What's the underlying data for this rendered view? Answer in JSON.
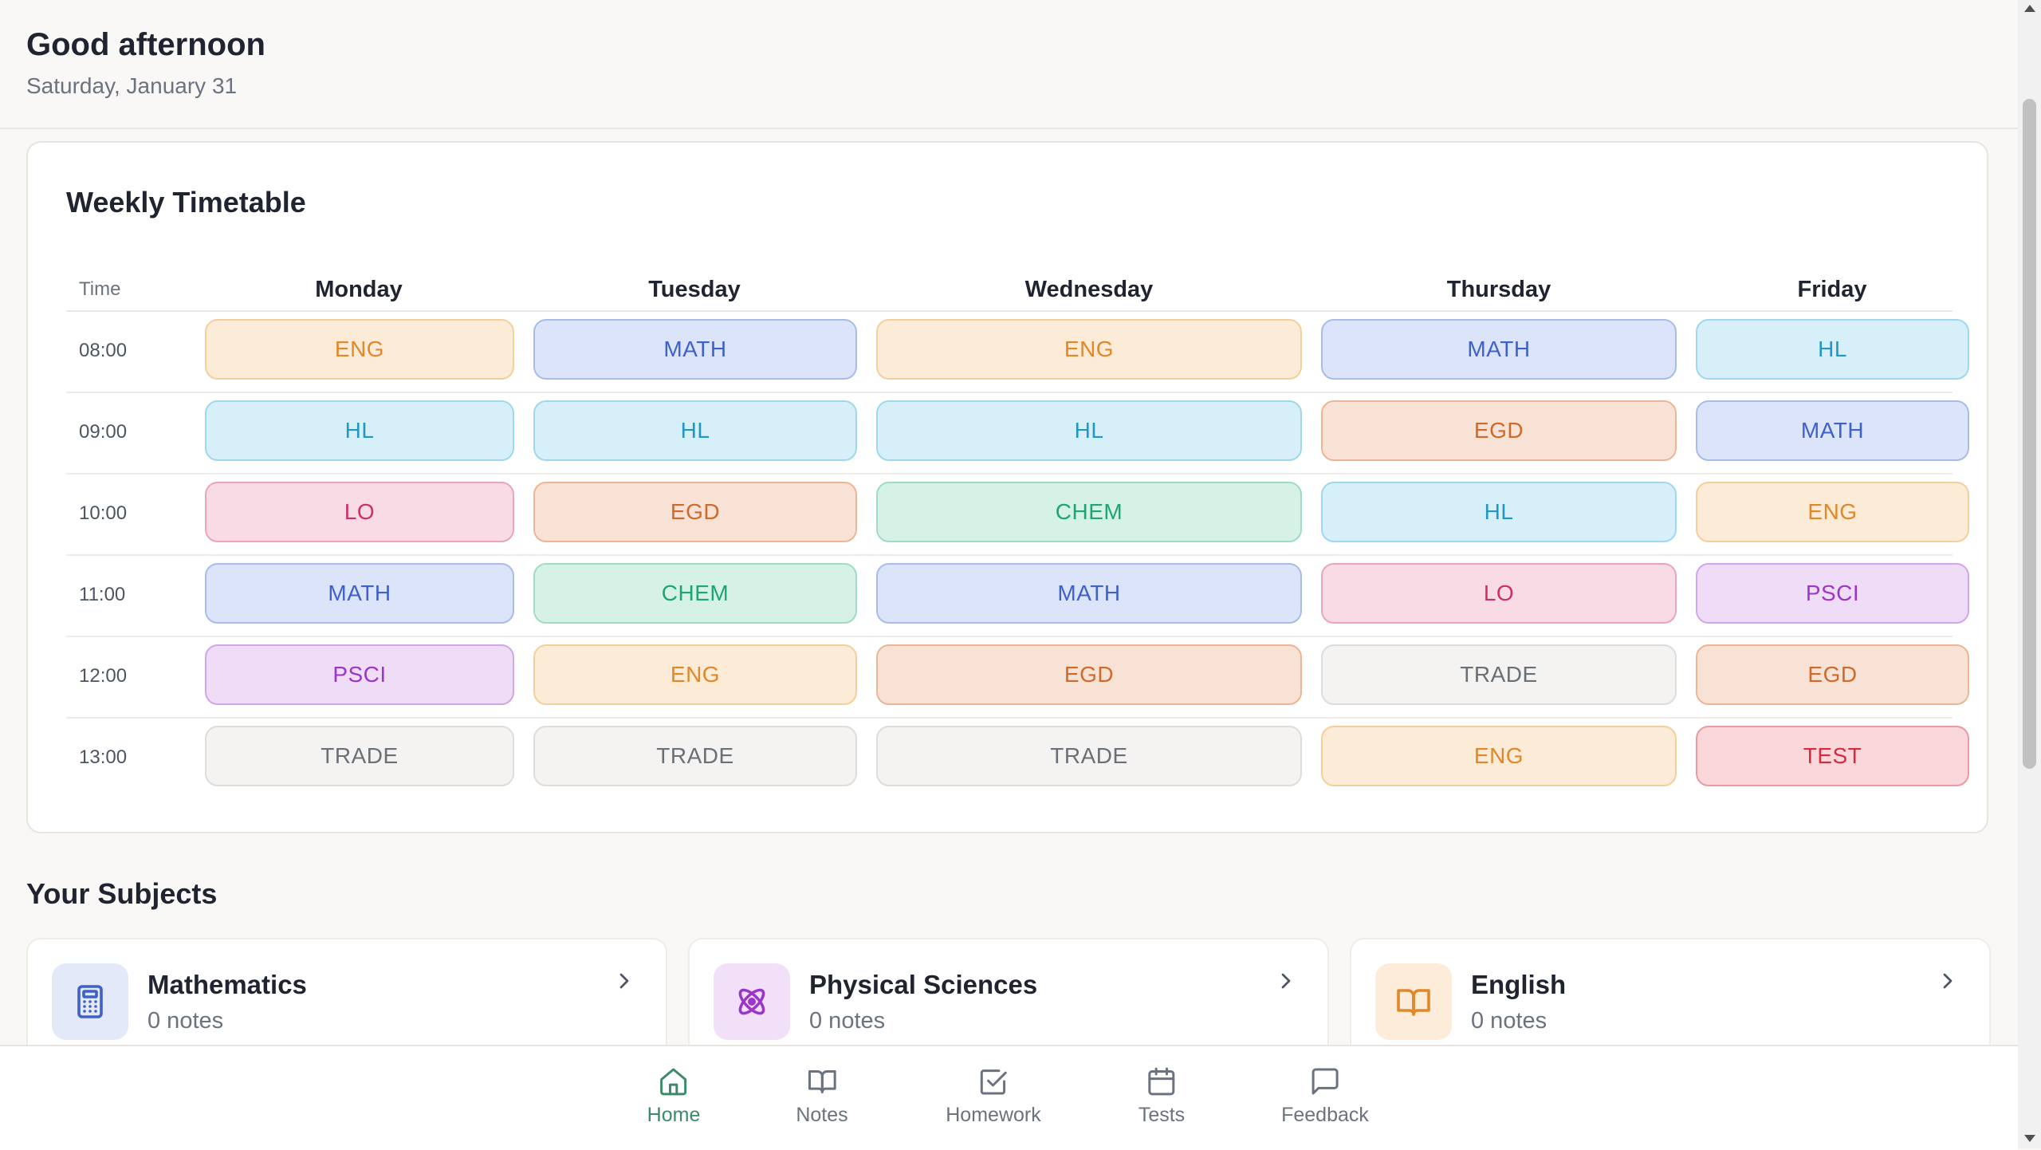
{
  "header": {
    "greeting": "Good afternoon",
    "date": "Saturday, January 31"
  },
  "timetable": {
    "title": "Weekly Timetable",
    "time_header": "Time",
    "days": [
      "Monday",
      "Tuesday",
      "Wednesday",
      "Thursday",
      "Friday"
    ],
    "rows": [
      {
        "time": "08:00",
        "slots": [
          "ENG",
          "MATH",
          "ENG",
          "MATH",
          "HL"
        ]
      },
      {
        "time": "09:00",
        "slots": [
          "HL",
          "HL",
          "HL",
          "EGD",
          "MATH"
        ]
      },
      {
        "time": "10:00",
        "slots": [
          "LO",
          "EGD",
          "CHEM",
          "HL",
          "ENG"
        ]
      },
      {
        "time": "11:00",
        "slots": [
          "MATH",
          "CHEM",
          "MATH",
          "LO",
          "PSCI"
        ]
      },
      {
        "time": "12:00",
        "slots": [
          "PSCI",
          "ENG",
          "EGD",
          "TRADE",
          "EGD"
        ]
      },
      {
        "time": "13:00",
        "slots": [
          "TRADE",
          "TRADE",
          "TRADE",
          "ENG",
          "TEST"
        ]
      }
    ],
    "subject_colors": {
      "ENG": "#e0882a",
      "MATH": "#3f61c8",
      "HL": "#2397c4",
      "EGD": "#cf6a2b",
      "LO": "#cf2f63",
      "CHEM": "#1ea476",
      "PSCI": "#9b36c8",
      "TRADE": "#6b6f76",
      "TEST": "#d62a3d"
    }
  },
  "subjects": {
    "title": "Your Subjects",
    "items": [
      {
        "name": "Mathematics",
        "notes": "0 notes",
        "icon": "calculator-icon",
        "color": "#3f61c8"
      },
      {
        "name": "Physical Sciences",
        "notes": "0 notes",
        "icon": "atom-icon",
        "color": "#9b36c8"
      },
      {
        "name": "English",
        "notes": "0 notes",
        "icon": "book-open-icon",
        "color": "#e0882a"
      }
    ]
  },
  "nav": {
    "items": [
      {
        "label": "Home",
        "icon": "home-icon",
        "active": true
      },
      {
        "label": "Notes",
        "icon": "book-icon",
        "active": false
      },
      {
        "label": "Homework",
        "icon": "checkbox-icon",
        "active": false
      },
      {
        "label": "Tests",
        "icon": "calendar-icon",
        "active": false
      },
      {
        "label": "Feedback",
        "icon": "message-icon",
        "active": false
      }
    ],
    "active_color": "#3d8a68"
  }
}
